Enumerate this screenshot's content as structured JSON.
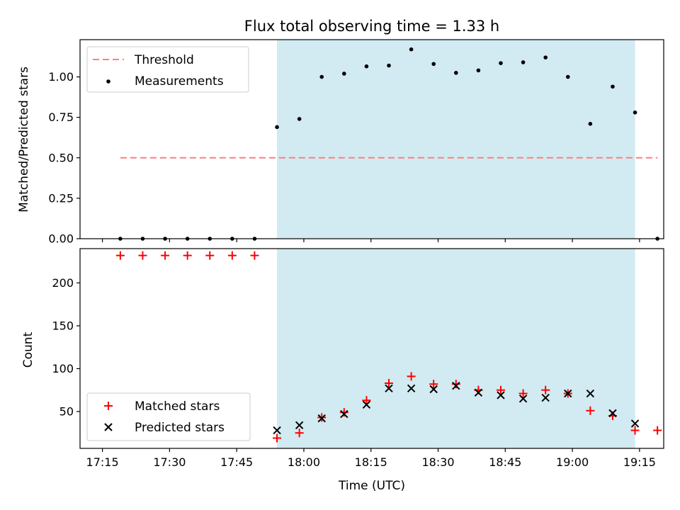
{
  "chart_data": [
    {
      "type": "scatter",
      "title": "Flux total observing time = 1.33 h",
      "xlabel": "",
      "ylabel": "Matched/Predicted stars",
      "ylim": [
        0,
        1.23
      ],
      "yticks": [
        0.0,
        0.25,
        0.5,
        0.75,
        1.0
      ],
      "ytick_labels": [
        "0.00",
        "0.25",
        "0.50",
        "0.75",
        "1.00"
      ],
      "shaded_range": [
        "17:54",
        "19:14"
      ],
      "shade_color": "#add8e6",
      "series": [
        {
          "name": "Threshold",
          "kind": "dashed-line",
          "color": "#ff7f7f",
          "x": [
            "17:19",
            "19:19"
          ],
          "values": [
            0.5,
            0.5
          ]
        },
        {
          "name": "Measurements",
          "kind": "dot",
          "color": "#000000",
          "x": [
            "17:19",
            "17:24",
            "17:29",
            "17:34",
            "17:39",
            "17:44",
            "17:49",
            "17:54",
            "17:59",
            "18:04",
            "18:09",
            "18:14",
            "18:19",
            "18:24",
            "18:29",
            "18:34",
            "18:39",
            "18:44",
            "18:49",
            "18:54",
            "18:59",
            "19:04",
            "19:09",
            "19:14",
            "19:19"
          ],
          "values": [
            0,
            0,
            0,
            0,
            0,
            0,
            0,
            0.69,
            0.74,
            1.0,
            1.02,
            1.065,
            1.07,
            1.17,
            1.08,
            1.025,
            1.04,
            1.085,
            1.09,
            1.12,
            1.0,
            0.71,
            0.94,
            0.78,
            0
          ]
        }
      ],
      "legend": "top-left"
    },
    {
      "type": "scatter",
      "title": "",
      "xlabel": "Time (UTC)",
      "ylabel": "Count",
      "ylim": [
        7,
        240
      ],
      "yticks": [
        50,
        100,
        150,
        200
      ],
      "ytick_labels": [
        "50",
        "100",
        "150",
        "200"
      ],
      "xticks": [
        "17:15",
        "17:30",
        "17:45",
        "18:00",
        "18:15",
        "18:30",
        "18:45",
        "19:00",
        "19:15"
      ],
      "shaded_range": [
        "17:54",
        "19:14"
      ],
      "shade_color": "#add8e6",
      "series": [
        {
          "name": "Matched stars",
          "kind": "plus",
          "color": "#ff0000",
          "x": [
            "17:19",
            "17:24",
            "17:29",
            "17:34",
            "17:39",
            "17:44",
            "17:49",
            "17:54",
            "17:59",
            "18:04",
            "18:09",
            "18:14",
            "18:19",
            "18:24",
            "18:29",
            "18:34",
            "18:39",
            "18:44",
            "18:49",
            "18:54",
            "18:59",
            "19:04",
            "19:09",
            "19:14",
            "19:19"
          ],
          "values": [
            232,
            232,
            232,
            232,
            232,
            232,
            232,
            19,
            25,
            43,
            49,
            63,
            83,
            91,
            82,
            82,
            75,
            75,
            71,
            75,
            71,
            51,
            45,
            28,
            28
          ]
        },
        {
          "name": "Predicted stars",
          "kind": "x",
          "color": "#000000",
          "x": [
            "17:54",
            "17:59",
            "18:04",
            "18:09",
            "18:14",
            "18:19",
            "18:24",
            "18:29",
            "18:34",
            "18:39",
            "18:44",
            "18:49",
            "18:54",
            "18:59",
            "19:04",
            "19:09",
            "19:14"
          ],
          "values": [
            28,
            34,
            42,
            47,
            58,
            77,
            77,
            76,
            80,
            72,
            69,
            65,
            66,
            71,
            71,
            48,
            36
          ]
        }
      ],
      "legend": "bottom-left"
    }
  ]
}
